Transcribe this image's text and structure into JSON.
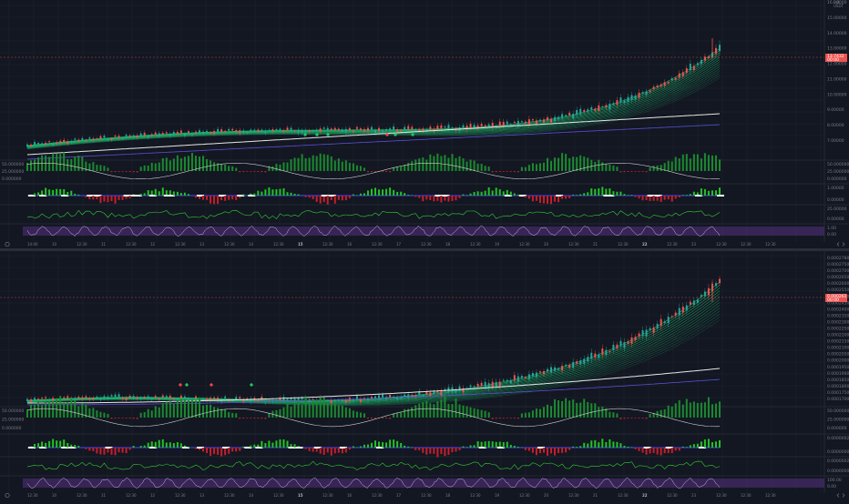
{
  "colors": {
    "background": "#131722",
    "grid": "#1e222d",
    "up": "#26a69a",
    "down": "#ef5350",
    "volume_green": "#1b8a2f",
    "volume_red": "#b2222a",
    "ribbon": "#1fbf6e",
    "ma_white": "#e8e8e8",
    "ma_blue": "#5b4fd6",
    "osc_green": "#33cc33",
    "osc_purple": "#7b3fb5",
    "price_tag": "#ef5350"
  },
  "top": {
    "header": [
      "0.0",
      "USDT"
    ],
    "price_axis": [
      "16.00000",
      "15.00000",
      "14.00000",
      "13.00000",
      "12.00000",
      "11.00000",
      "10.00000",
      "9.00000",
      "8.00000",
      "7.00000"
    ],
    "last_price": "13.7432",
    "last_price_sub": "00:00",
    "pane1_axis": [
      "50.000000",
      "25.000000",
      "0.000000"
    ],
    "pane2_axis": [
      "1.00000",
      "0.00000"
    ],
    "pane3_axis": [
      "25.00000",
      "0.00000"
    ],
    "pane4_axis": [
      "1.00",
      "0.00"
    ],
    "time_axis": [
      {
        "t": "14:00",
        "b": false
      },
      {
        "t": "10",
        "b": false
      },
      {
        "t": "12:30",
        "b": false
      },
      {
        "t": "11",
        "b": false
      },
      {
        "t": "12:30",
        "b": false
      },
      {
        "t": "12",
        "b": false
      },
      {
        "t": "12:30",
        "b": false
      },
      {
        "t": "13",
        "b": false
      },
      {
        "t": "12:30",
        "b": false
      },
      {
        "t": "14",
        "b": false
      },
      {
        "t": "12:30",
        "b": false
      },
      {
        "t": "15",
        "b": true
      },
      {
        "t": "12:30",
        "b": false
      },
      {
        "t": "16",
        "b": false
      },
      {
        "t": "12:30",
        "b": false
      },
      {
        "t": "17",
        "b": false
      },
      {
        "t": "12:30",
        "b": false
      },
      {
        "t": "18",
        "b": false
      },
      {
        "t": "12:30",
        "b": false
      },
      {
        "t": "19",
        "b": false
      },
      {
        "t": "12:30",
        "b": false
      },
      {
        "t": "20",
        "b": false
      },
      {
        "t": "12:30",
        "b": false
      },
      {
        "t": "21",
        "b": false
      },
      {
        "t": "12:30",
        "b": false
      },
      {
        "t": "22",
        "b": true
      },
      {
        "t": "12:30",
        "b": false
      },
      {
        "t": "23",
        "b": false
      },
      {
        "t": "12:30",
        "b": false
      },
      {
        "t": "12:30",
        "b": false
      },
      {
        "t": "12:30",
        "b": false
      }
    ]
  },
  "bottom": {
    "price_axis": [
      "0.00027800",
      "0.00027500",
      "0.00027000",
      "0.00026500",
      "0.00026000",
      "0.00025500",
      "0.00025000",
      "0.00024500",
      "0.00024000",
      "0.00023500",
      "0.00023000",
      "0.00022500",
      "0.00022000",
      "0.00021500",
      "0.00021000",
      "0.00020500",
      "0.00020000",
      "0.00019500",
      "0.00019000",
      "0.00018500",
      "0.00018000",
      "0.00017500",
      "0.00017000"
    ],
    "last_price": "0.000261",
    "last_price_sub": "00:00",
    "pane1_axis": [
      "50.000000",
      "25.000000",
      "0.000000"
    ],
    "pane2_axis": [
      "0.00000020",
      "0.00000000"
    ],
    "pane3_axis": [
      "0.00000020",
      "0.00000000"
    ],
    "pane4_axis": [
      "100.00",
      "0.00"
    ],
    "time_axis": [
      {
        "t": "12:30",
        "b": false
      },
      {
        "t": "10",
        "b": false
      },
      {
        "t": "12:30",
        "b": false
      },
      {
        "t": "11",
        "b": false
      },
      {
        "t": "12:30",
        "b": false
      },
      {
        "t": "12",
        "b": false
      },
      {
        "t": "12:30",
        "b": false
      },
      {
        "t": "13",
        "b": false
      },
      {
        "t": "12:30",
        "b": false
      },
      {
        "t": "14",
        "b": false
      },
      {
        "t": "12:30",
        "b": false
      },
      {
        "t": "15",
        "b": true
      },
      {
        "t": "12:30",
        "b": false
      },
      {
        "t": "16",
        "b": false
      },
      {
        "t": "12:30",
        "b": false
      },
      {
        "t": "17",
        "b": false
      },
      {
        "t": "12:30",
        "b": false
      },
      {
        "t": "18",
        "b": false
      },
      {
        "t": "12:30",
        "b": false
      },
      {
        "t": "19",
        "b": false
      },
      {
        "t": "12:30",
        "b": false
      },
      {
        "t": "20",
        "b": false
      },
      {
        "t": "12:30",
        "b": false
      },
      {
        "t": "21",
        "b": false
      },
      {
        "t": "12:30",
        "b": false
      },
      {
        "t": "22",
        "b": true
      },
      {
        "t": "12:30",
        "b": false
      },
      {
        "t": "23",
        "b": false
      },
      {
        "t": "12:30",
        "b": false
      },
      {
        "t": "12:30",
        "b": false
      },
      {
        "t": "12:30",
        "b": false
      }
    ]
  },
  "icons": {
    "settings": "gear-icon",
    "scroll_left": "chevron-left-icon",
    "scroll_right": "chevron-right-icon"
  }
}
